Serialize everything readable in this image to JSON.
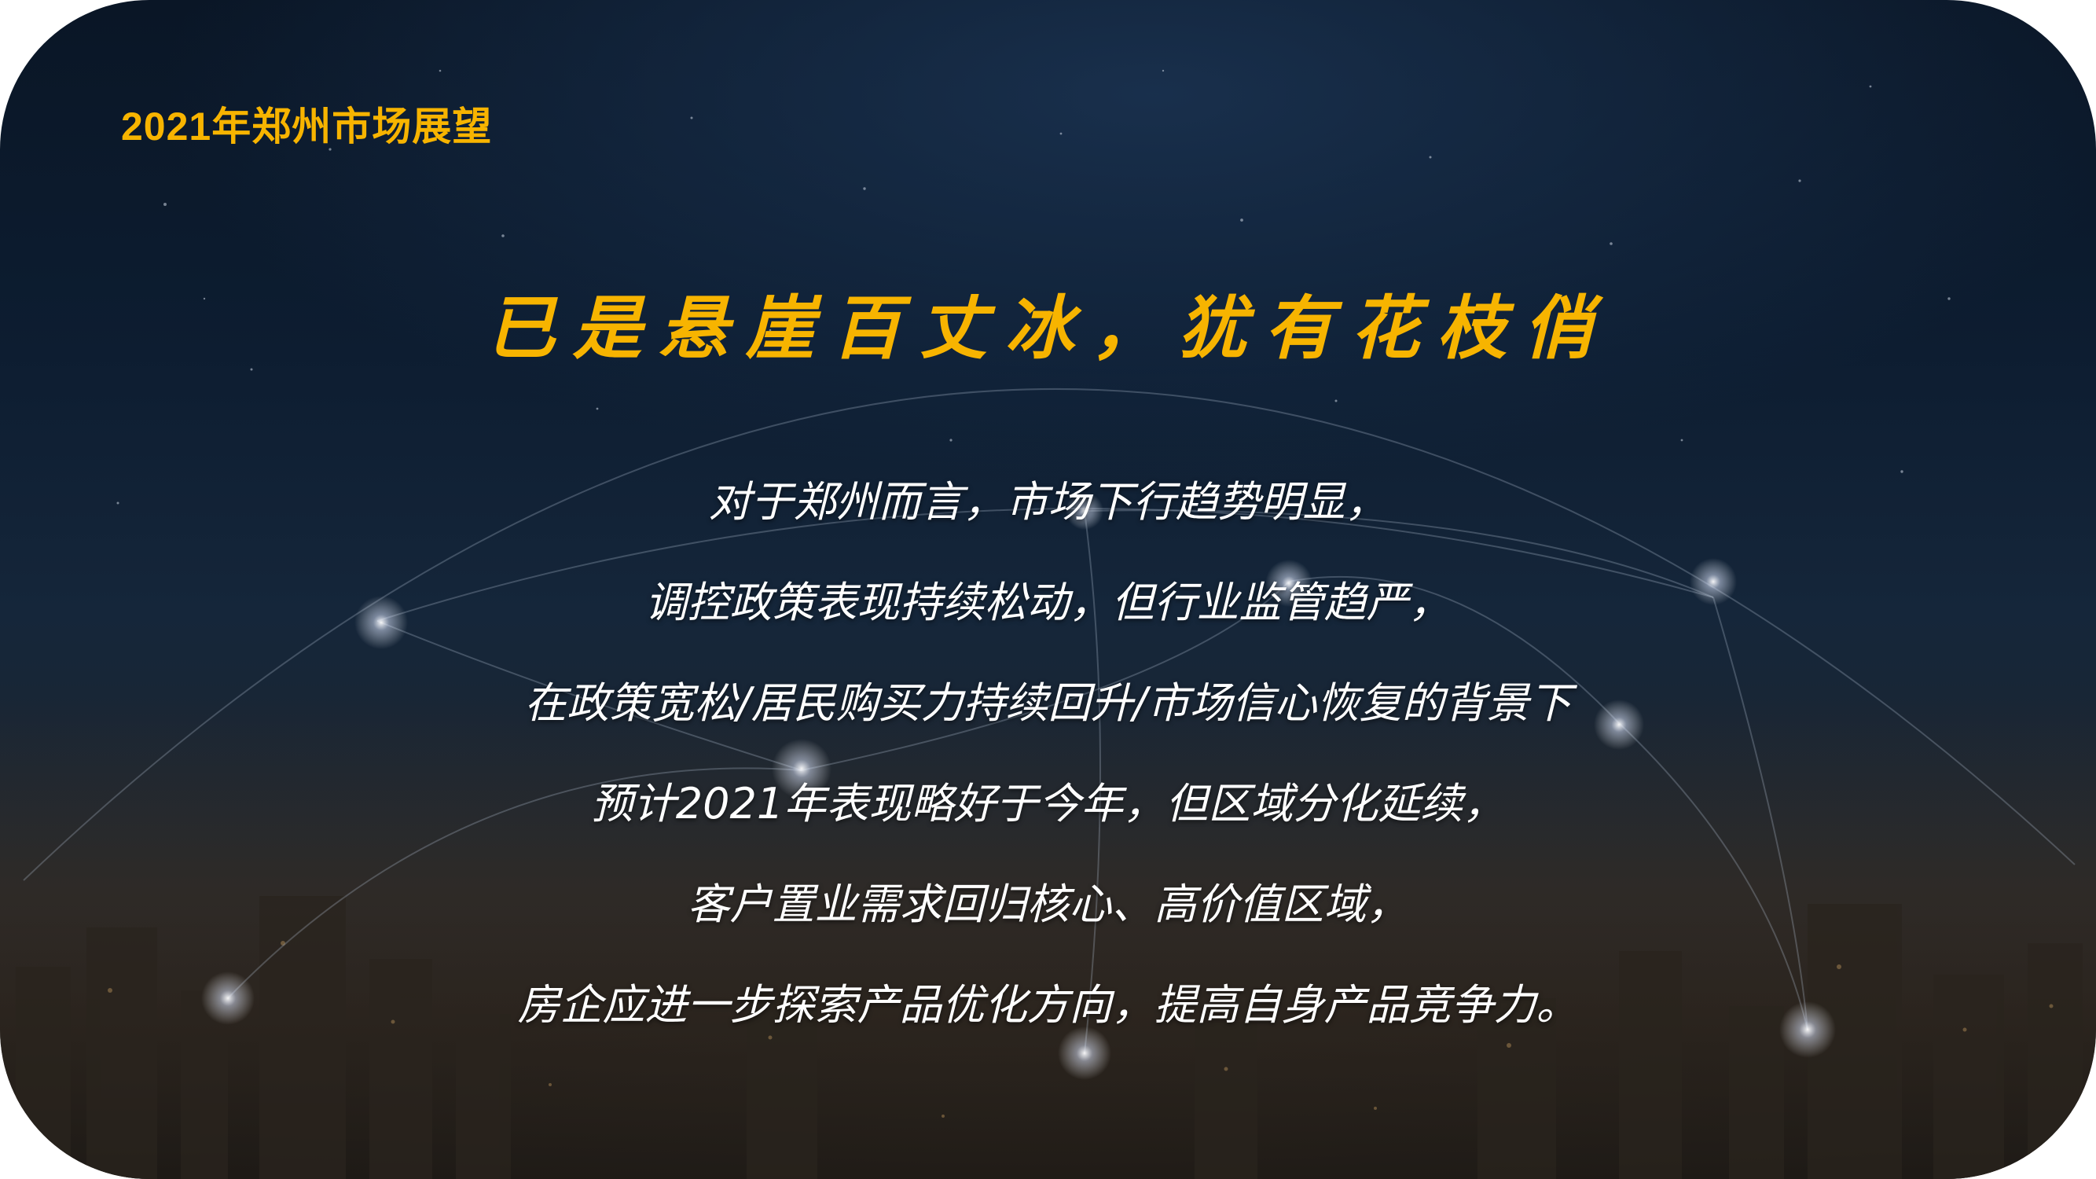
{
  "slide": {
    "header_title": "2021年郑州市场展望",
    "headline": "已是悬崖百丈冰，犹有花枝俏",
    "body_lines": [
      "对于郑州而言，市场下行趋势明显，",
      "调控政策表现持续松动，但行业监管趋严，",
      "在政策宽松/居民购买力持续回升/市场信心恢复的背景下",
      "预计2021年表现略好于今年，但区域分化延续，",
      "客户置业需求回归核心、高价值区域，",
      "房企应进一步探索产品优化方向，提高自身产品竞争力。"
    ]
  },
  "colors": {
    "accent": "#f7b400",
    "body_text": "#ffffff",
    "background_top": "#0a1626",
    "background_bottom": "#1a1714"
  }
}
